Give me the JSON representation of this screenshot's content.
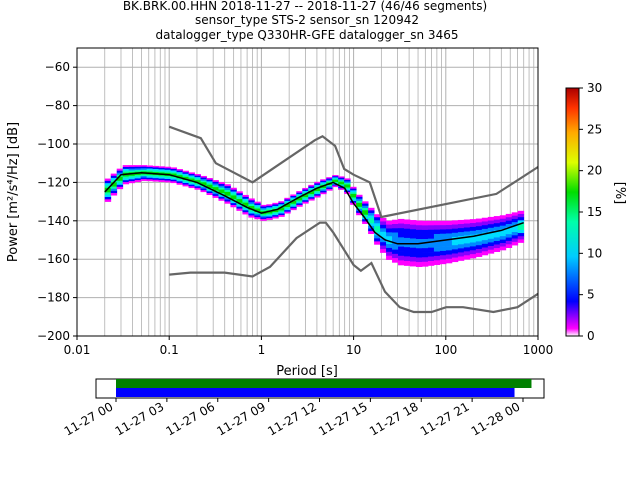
{
  "title": {
    "line1": "BK.BRK.00.HHN   2018-11-27 -- 2018-11-27  (46/46 segments)",
    "line2": "sensor_type STS-2 sensor_sn 120942",
    "line3": "datalogger_type Q330HR-GFE datalogger_sn 3465"
  },
  "chart_data": [
    {
      "type": "heatmap",
      "xlabel": "Period [s]",
      "ylabel": "Power [m²/s⁴/Hz] [dB]",
      "xscale": "log",
      "xlim": [
        0.01,
        1000
      ],
      "ylim": [
        -200,
        -50
      ],
      "x_ticks": [
        {
          "v": 0.01,
          "label": "0.01"
        },
        {
          "v": 0.1,
          "label": "0.1"
        },
        {
          "v": 1,
          "label": "1"
        },
        {
          "v": 10,
          "label": "10"
        },
        {
          "v": 100,
          "label": "100"
        },
        {
          "v": 1000,
          "label": "1000"
        }
      ],
      "y_ticks": [
        {
          "v": -60,
          "label": "−60"
        },
        {
          "v": -80,
          "label": "−80"
        },
        {
          "v": -100,
          "label": "−100"
        },
        {
          "v": -120,
          "label": "−120"
        },
        {
          "v": -140,
          "label": "−140"
        },
        {
          "v": -160,
          "label": "−160"
        },
        {
          "v": -180,
          "label": "−180"
        },
        {
          "v": -200,
          "label": "−200"
        }
      ],
      "grid": true,
      "colorbar": {
        "label": "[%]",
        "range": [
          0,
          30
        ],
        "ticks": [
          {
            "v": 0,
            "label": "0"
          },
          {
            "v": 5,
            "label": "5"
          },
          {
            "v": 10,
            "label": "10"
          },
          {
            "v": 15,
            "label": "15"
          },
          {
            "v": 20,
            "label": "20"
          },
          {
            "v": 25,
            "label": "25"
          },
          {
            "v": 30,
            "label": "30"
          }
        ]
      },
      "mean_psd": {
        "x": [
          0.02,
          0.03,
          0.05,
          0.1,
          0.2,
          0.4,
          0.7,
          1.0,
          1.5,
          2.5,
          4,
          6,
          8,
          10,
          13,
          17,
          22,
          30,
          50,
          100,
          200,
          400,
          700
        ],
        "y": [
          -125,
          -116,
          -115,
          -116,
          -120,
          -127,
          -133,
          -136,
          -134,
          -128,
          -123,
          -120,
          -123,
          -131,
          -138,
          -146,
          -150,
          -152,
          -152,
          -150,
          -148,
          -145,
          -141
        ]
      },
      "nhnm": {
        "x": [
          0.1,
          0.22,
          0.32,
          0.8,
          3.8,
          4.6,
          6.3,
          7.9,
          10,
          15,
          20,
          354,
          1000
        ],
        "y": [
          -91,
          -97,
          -110,
          -120,
          -98,
          -96,
          -101,
          -113,
          -116,
          -120,
          -138,
          -126,
          -112
        ]
      },
      "nlnm": {
        "x": [
          0.1,
          0.17,
          0.4,
          0.8,
          1.24,
          2.4,
          4.3,
          5,
          6,
          10,
          12,
          15.6,
          21.9,
          31.6,
          45,
          70,
          101,
          154,
          328,
          600,
          1000
        ],
        "y": [
          -168,
          -167,
          -167,
          -169,
          -164,
          -149,
          -141,
          -141,
          -146,
          -163,
          -166,
          -162,
          -177,
          -185,
          -187.5,
          -187.5,
          -185,
          -185,
          -187.5,
          -185,
          -178
        ]
      },
      "density_ridge": {
        "x": [
          0.02,
          0.03,
          0.05,
          0.1,
          0.2,
          0.4,
          0.7,
          1.0,
          1.5,
          2.5,
          4,
          6,
          8,
          10,
          13,
          17,
          22,
          30,
          50,
          100,
          200,
          400,
          700
        ],
        "y": [
          -124,
          -116,
          -115,
          -116,
          -120,
          -126,
          -133,
          -136,
          -134,
          -128,
          -123,
          -119,
          -122,
          -130,
          -137,
          -145,
          -150,
          -151,
          -152,
          -151,
          -149,
          -146,
          -142
        ],
        "spread": [
          6,
          5,
          4,
          4,
          4,
          5,
          5,
          4,
          4,
          4,
          4,
          3,
          4,
          5,
          6,
          8,
          10,
          12,
          12,
          11,
          10,
          9,
          8
        ]
      }
    },
    {
      "type": "bar",
      "subtype": "timeline",
      "x_ticks": [
        "11-27 00",
        "11-27 03",
        "11-27 06",
        "11-27 09",
        "11-27 12",
        "11-27 15",
        "11-27 18",
        "11-27 21",
        "11-28 00"
      ],
      "xlim_hours": [
        0,
        24
      ],
      "series": [
        {
          "color": "#008000",
          "start_hour": 0,
          "end_hour": 24.5
        },
        {
          "color": "#0000ff",
          "start_hour": 0,
          "end_hour": 23.5
        }
      ]
    }
  ],
  "colors": {
    "grid": "#b0b0b0",
    "model": "#666666",
    "mean": "#000000"
  }
}
